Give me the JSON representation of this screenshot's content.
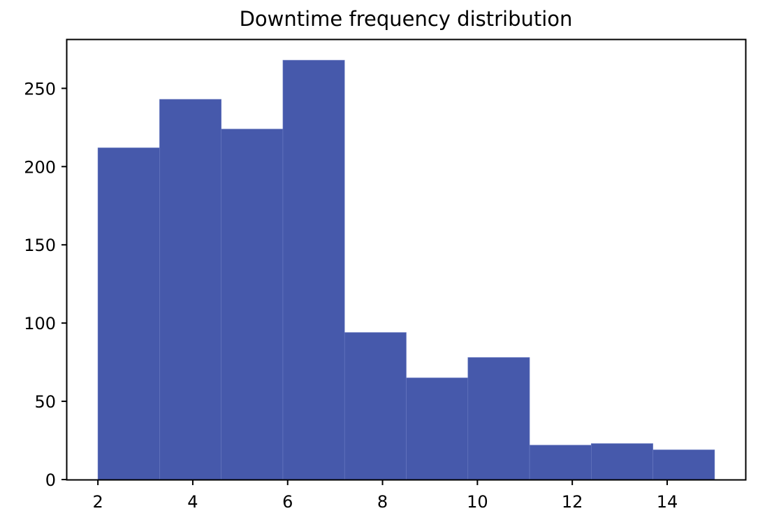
{
  "chart_data": {
    "type": "bar",
    "title": "Downtime frequency distribution",
    "xlabel": "",
    "ylabel": "",
    "bin_edges": [
      2.0,
      3.3,
      4.6,
      5.9,
      7.2,
      8.5,
      9.8,
      11.1,
      12.4,
      13.7,
      15.0
    ],
    "values": [
      212,
      243,
      224,
      268,
      94,
      65,
      78,
      22,
      23,
      19
    ],
    "xlim": [
      1.35,
      15.65
    ],
    "ylim": [
      0,
      281
    ],
    "x_ticks": [
      2,
      4,
      6,
      8,
      10,
      12,
      14
    ],
    "y_ticks": [
      0,
      50,
      100,
      150,
      200,
      250
    ],
    "bar_color": "#4659ab",
    "bar_edge_color": "#6a7bc2",
    "grid": false,
    "legend": "none"
  }
}
